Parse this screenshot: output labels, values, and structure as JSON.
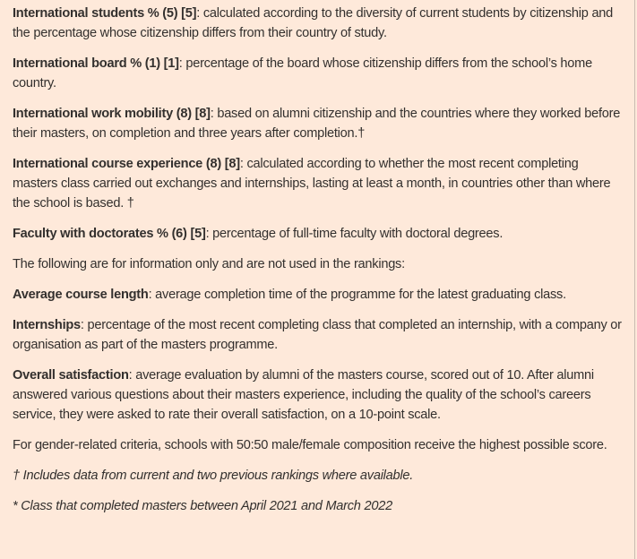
{
  "definitions": [
    {
      "term": "International students % (5) [5]",
      "text": ": calculated according to the diversity of current students by citizenship and the percentage whose citizenship differs from their country of study."
    },
    {
      "term": "International board % (1) [1]",
      "text": ": percentage of the board whose citizenship differs from the school’s home country."
    },
    {
      "term": "International work mobility (8) [8]",
      "text": ": based on alumni citizenship and the countries where they worked before their masters, on completion and three years after completion.†"
    },
    {
      "term": "International course experience (8) [8]",
      "text": ": calculated according to whether the most recent completing masters class carried out exchanges and internships, lasting at least a month, in countries other than where the school is based. †"
    },
    {
      "term": "Faculty with doctorates % (6) [5]",
      "text": ": percentage of full-time faculty with doctoral degrees."
    }
  ],
  "info_only_intro": "The following are for information only and are not used in the rankings:",
  "info_definitions": [
    {
      "term": "Average course length",
      "text": ": average completion time of the programme for the latest graduating class."
    },
    {
      "term": "Internships",
      "text": ": percentage of the most recent completing class that completed an internship, with a company or organisation as part of the masters programme."
    },
    {
      "term": "Overall satisfaction",
      "text": ": average evaluation by alumni of the masters course, scored out of 10. After alumni answered various questions about their masters experience, including the quality of the school’s careers service, they were asked to rate their overall satisfaction, on a 10-point scale."
    }
  ],
  "gender_note": "For gender-related criteria, schools with 50:50 male/female composition receive the highest possible score.",
  "footnotes": [
    "† Includes data from current and two previous rankings where available.",
    "* Class that completed masters between April 2021 and March 2022"
  ]
}
